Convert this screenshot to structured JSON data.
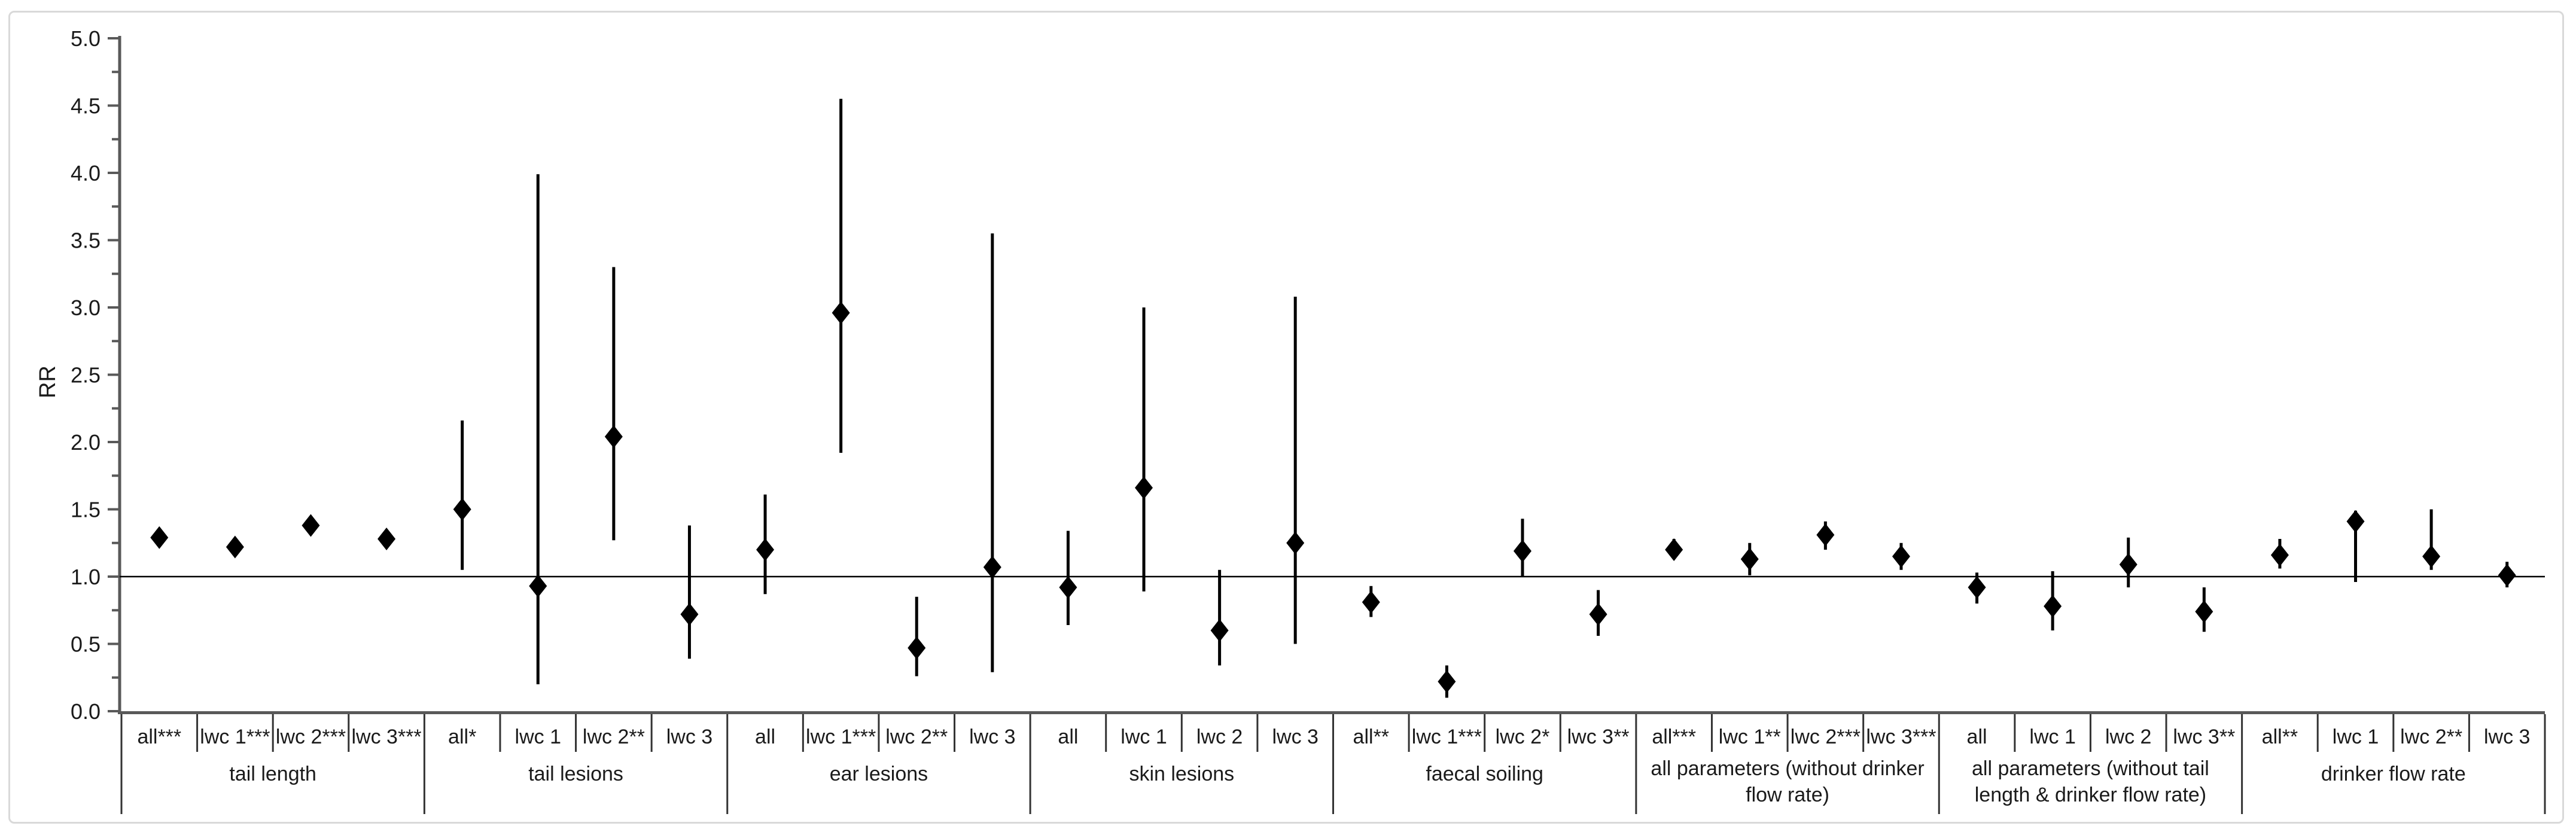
{
  "figure": {
    "background_color": "#ffffff",
    "frame_color": "#d9d9d9",
    "axis_color": "#595959",
    "data_color": "#000000",
    "text_color": "#1a1a1a"
  },
  "chart_data": {
    "type": "scatter",
    "subtype": "forest-point-range",
    "title": "",
    "xlabel": "",
    "ylabel": "RR",
    "ylim": [
      0.0,
      5.0
    ],
    "ytick_step": 0.5,
    "yminor_step": 0.25,
    "ytick_labels": [
      "0.0",
      "0.5",
      "1.0",
      "1.5",
      "2.0",
      "2.5",
      "3.0",
      "3.5",
      "4.0",
      "4.5",
      "5.0"
    ],
    "reference_line_rr": 1.0,
    "grid": false,
    "legend": "none",
    "marker": "diamond",
    "error_bars": "95%-CI vertical lines",
    "groups": [
      {
        "label": "tail length",
        "points": [
          {
            "label": "all***",
            "rr": 1.29,
            "lo": 1.24,
            "hi": 1.35
          },
          {
            "label": "lwc 1***",
            "rr": 1.22,
            "lo": 1.17,
            "hi": 1.27
          },
          {
            "label": "lwc 2***",
            "rr": 1.38,
            "lo": 1.33,
            "hi": 1.44
          },
          {
            "label": "lwc 3***",
            "rr": 1.28,
            "lo": 1.23,
            "hi": 1.33
          }
        ]
      },
      {
        "label": "tail lesions",
        "points": [
          {
            "label": "all*",
            "rr": 1.5,
            "lo": 1.05,
            "hi": 2.16
          },
          {
            "label": "lwc 1",
            "rr": 0.93,
            "lo": 0.2,
            "hi": 3.99
          },
          {
            "label": "lwc 2**",
            "rr": 2.04,
            "lo": 1.27,
            "hi": 3.3
          },
          {
            "label": "lwc 3",
            "rr": 0.72,
            "lo": 0.39,
            "hi": 1.38
          }
        ]
      },
      {
        "label": "ear lesions",
        "points": [
          {
            "label": "all",
            "rr": 1.2,
            "lo": 0.87,
            "hi": 1.61
          },
          {
            "label": "lwc 1***",
            "rr": 2.96,
            "lo": 1.92,
            "hi": 4.55
          },
          {
            "label": "lwc 2**",
            "rr": 0.47,
            "lo": 0.26,
            "hi": 0.85
          },
          {
            "label": "lwc 3",
            "rr": 1.07,
            "lo": 0.29,
            "hi": 3.55
          }
        ]
      },
      {
        "label": "skin lesions",
        "points": [
          {
            "label": "all",
            "rr": 0.92,
            "lo": 0.64,
            "hi": 1.34
          },
          {
            "label": "lwc 1",
            "rr": 1.66,
            "lo": 0.89,
            "hi": 3.0
          },
          {
            "label": "lwc 2",
            "rr": 0.6,
            "lo": 0.34,
            "hi": 1.05
          },
          {
            "label": "lwc 3",
            "rr": 1.25,
            "lo": 0.5,
            "hi": 3.08
          }
        ]
      },
      {
        "label": "faecal soiling",
        "points": [
          {
            "label": "all**",
            "rr": 0.81,
            "lo": 0.7,
            "hi": 0.93
          },
          {
            "label": "lwc 1***",
            "rr": 0.22,
            "lo": 0.1,
            "hi": 0.34
          },
          {
            "label": "lwc 2*",
            "rr": 1.19,
            "lo": 1.0,
            "hi": 1.43
          },
          {
            "label": "lwc 3**",
            "rr": 0.72,
            "lo": 0.56,
            "hi": 0.9
          }
        ]
      },
      {
        "label": "all parameters (without drinker flow rate)",
        "label_lines": [
          "all parameters (without drinker",
          "flow rate)"
        ],
        "points": [
          {
            "label": "all***",
            "rr": 1.2,
            "lo": 1.13,
            "hi": 1.28
          },
          {
            "label": "lwc 1**",
            "rr": 1.13,
            "lo": 1.01,
            "hi": 1.25
          },
          {
            "label": "lwc 2***",
            "rr": 1.31,
            "lo": 1.2,
            "hi": 1.41
          },
          {
            "label": "lwc 3***",
            "rr": 1.15,
            "lo": 1.05,
            "hi": 1.25
          }
        ]
      },
      {
        "label": "all parameters (without tail length & drinker flow rate)",
        "label_lines": [
          "all parameters (without tail",
          "length & drinker flow rate)"
        ],
        "points": [
          {
            "label": "all",
            "rr": 0.92,
            "lo": 0.8,
            "hi": 1.03
          },
          {
            "label": "lwc 1",
            "rr": 0.78,
            "lo": 0.6,
            "hi": 1.04
          },
          {
            "label": "lwc 2",
            "rr": 1.09,
            "lo": 0.92,
            "hi": 1.29
          },
          {
            "label": "lwc 3**",
            "rr": 0.74,
            "lo": 0.59,
            "hi": 0.92
          }
        ]
      },
      {
        "label": "drinker flow rate",
        "points": [
          {
            "label": "all**",
            "rr": 1.16,
            "lo": 1.06,
            "hi": 1.28
          },
          {
            "label": "lwc 1",
            "rr": 1.41,
            "lo": 0.96,
            "hi": 1.49
          },
          {
            "label": "lwc 2**",
            "rr": 1.15,
            "lo": 1.05,
            "hi": 1.5
          },
          {
            "label": "lwc 3",
            "rr": 1.01,
            "lo": 0.92,
            "hi": 1.11
          }
        ]
      }
    ]
  }
}
